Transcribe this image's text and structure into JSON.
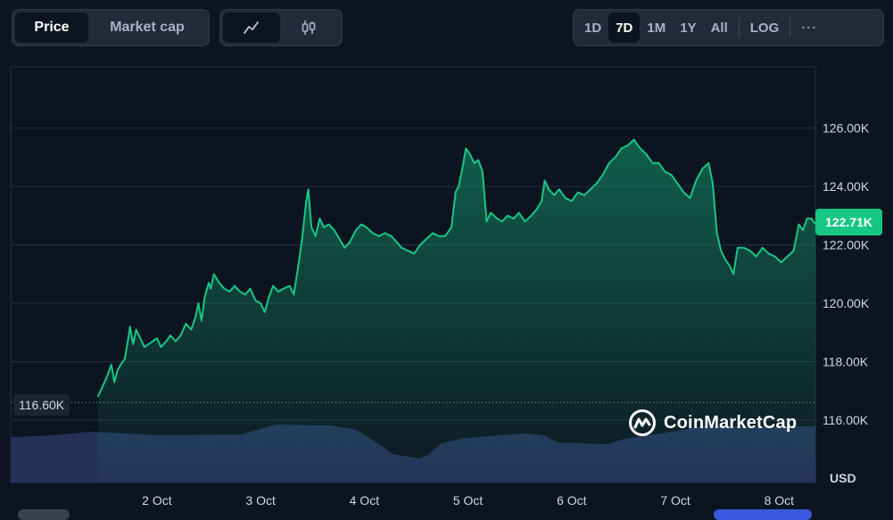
{
  "controls": {
    "metric_tabs": [
      {
        "label": "Price",
        "active": true
      },
      {
        "label": "Market cap",
        "active": false
      }
    ],
    "chart_types": [
      {
        "icon": "line-chart-icon",
        "active": true
      },
      {
        "icon": "candlestick-icon",
        "active": false
      }
    ],
    "ranges": [
      "1D",
      "7D",
      "1M",
      "1Y",
      "All"
    ],
    "active_range": "7D",
    "scale_label": "LOG",
    "more_label": "···"
  },
  "current_price_label": "122.71K",
  "start_price_label": "116.60K",
  "currency_label": "USD",
  "brand": {
    "name": "CoinMarketCap"
  },
  "colors": {
    "line": "#16c784",
    "badge": "#16c784",
    "volume": "#2c3a66",
    "background": "#0d1421"
  },
  "chart_data": {
    "type": "line",
    "title": "",
    "xlabel": "",
    "ylabel": "USD",
    "x_ticks": [
      "2 Oct",
      "3 Oct",
      "4 Oct",
      "5 Oct",
      "6 Oct",
      "7 Oct",
      "8 Oct"
    ],
    "y_ticks": [
      {
        "value": 116000,
        "label": "116.00K"
      },
      {
        "value": 118000,
        "label": "118.00K"
      },
      {
        "value": 120000,
        "label": "120.00K"
      },
      {
        "value": 122000,
        "label": "122.00K"
      },
      {
        "value": 124000,
        "label": "124.00K"
      },
      {
        "value": 126000,
        "label": "126.00K"
      }
    ],
    "ylim": [
      114000,
      128000
    ],
    "xlim": [
      1.43,
      8.35
    ],
    "grid": true,
    "reference_line": {
      "value": 116600,
      "style": "dotted"
    },
    "series": [
      {
        "values": [
          [
            1.43,
            116800
          ],
          [
            1.47,
            117100
          ],
          [
            1.52,
            117500
          ],
          [
            1.56,
            117900
          ],
          [
            1.59,
            117300
          ],
          [
            1.62,
            117700
          ],
          [
            1.65,
            117900
          ],
          [
            1.69,
            118100
          ],
          [
            1.72,
            118700
          ],
          [
            1.74,
            119200
          ],
          [
            1.77,
            118600
          ],
          [
            1.8,
            119100
          ],
          [
            1.84,
            118800
          ],
          [
            1.88,
            118500
          ],
          [
            1.92,
            118600
          ],
          [
            1.96,
            118700
          ],
          [
            2.0,
            118800
          ],
          [
            2.04,
            118500
          ],
          [
            2.09,
            118700
          ],
          [
            2.13,
            118900
          ],
          [
            2.18,
            118700
          ],
          [
            2.23,
            118900
          ],
          [
            2.28,
            119300
          ],
          [
            2.33,
            119100
          ],
          [
            2.37,
            119500
          ],
          [
            2.4,
            120000
          ],
          [
            2.43,
            119400
          ],
          [
            2.46,
            120200
          ],
          [
            2.5,
            120700
          ],
          [
            2.52,
            120500
          ],
          [
            2.55,
            121000
          ],
          [
            2.6,
            120700
          ],
          [
            2.65,
            120500
          ],
          [
            2.7,
            120400
          ],
          [
            2.75,
            120600
          ],
          [
            2.8,
            120400
          ],
          [
            2.85,
            120300
          ],
          [
            2.9,
            120500
          ],
          [
            2.95,
            120100
          ],
          [
            3.0,
            120000
          ],
          [
            3.04,
            119700
          ],
          [
            3.08,
            120200
          ],
          [
            3.12,
            120600
          ],
          [
            3.17,
            120400
          ],
          [
            3.22,
            120500
          ],
          [
            3.28,
            120600
          ],
          [
            3.32,
            120300
          ],
          [
            3.36,
            121200
          ],
          [
            3.4,
            122200
          ],
          [
            3.44,
            123500
          ],
          [
            3.46,
            123900
          ],
          [
            3.49,
            122600
          ],
          [
            3.53,
            122300
          ],
          [
            3.57,
            122900
          ],
          [
            3.61,
            122600
          ],
          [
            3.66,
            122700
          ],
          [
            3.71,
            122500
          ],
          [
            3.76,
            122200
          ],
          [
            3.81,
            121900
          ],
          [
            3.86,
            122100
          ],
          [
            3.92,
            122500
          ],
          [
            3.97,
            122700
          ],
          [
            4.02,
            122600
          ],
          [
            4.08,
            122400
          ],
          [
            4.14,
            122300
          ],
          [
            4.2,
            122400
          ],
          [
            4.26,
            122300
          ],
          [
            4.31,
            122100
          ],
          [
            4.36,
            121900
          ],
          [
            4.42,
            121800
          ],
          [
            4.48,
            121700
          ],
          [
            4.54,
            122000
          ],
          [
            4.6,
            122200
          ],
          [
            4.66,
            122400
          ],
          [
            4.72,
            122300
          ],
          [
            4.78,
            122300
          ],
          [
            4.84,
            122600
          ],
          [
            4.88,
            123800
          ],
          [
            4.91,
            124000
          ],
          [
            4.95,
            124700
          ],
          [
            4.98,
            125300
          ],
          [
            5.02,
            125100
          ],
          [
            5.06,
            124800
          ],
          [
            5.1,
            124900
          ],
          [
            5.14,
            124500
          ],
          [
            5.18,
            122800
          ],
          [
            5.22,
            123100
          ],
          [
            5.28,
            122900
          ],
          [
            5.33,
            122800
          ],
          [
            5.38,
            123000
          ],
          [
            5.44,
            122900
          ],
          [
            5.49,
            123100
          ],
          [
            5.55,
            122800
          ],
          [
            5.61,
            123000
          ],
          [
            5.66,
            123200
          ],
          [
            5.71,
            123500
          ],
          [
            5.74,
            124200
          ],
          [
            5.78,
            123900
          ],
          [
            5.83,
            123700
          ],
          [
            5.88,
            123900
          ],
          [
            5.94,
            123600
          ],
          [
            6.0,
            123500
          ],
          [
            6.06,
            123800
          ],
          [
            6.12,
            123700
          ],
          [
            6.18,
            123900
          ],
          [
            6.24,
            124100
          ],
          [
            6.3,
            124400
          ],
          [
            6.36,
            124800
          ],
          [
            6.42,
            125000
          ],
          [
            6.48,
            125300
          ],
          [
            6.54,
            125400
          ],
          [
            6.6,
            125600
          ],
          [
            6.66,
            125300
          ],
          [
            6.72,
            125100
          ],
          [
            6.78,
            124800
          ],
          [
            6.84,
            124800
          ],
          [
            6.9,
            124500
          ],
          [
            6.96,
            124400
          ],
          [
            7.02,
            124100
          ],
          [
            7.08,
            123800
          ],
          [
            7.14,
            123600
          ],
          [
            7.2,
            124200
          ],
          [
            7.26,
            124600
          ],
          [
            7.32,
            124800
          ],
          [
            7.36,
            124100
          ],
          [
            7.4,
            122400
          ],
          [
            7.44,
            121800
          ],
          [
            7.48,
            121500
          ],
          [
            7.52,
            121300
          ],
          [
            7.56,
            121000
          ],
          [
            7.6,
            121900
          ],
          [
            7.66,
            121900
          ],
          [
            7.72,
            121800
          ],
          [
            7.78,
            121600
          ],
          [
            7.84,
            121900
          ],
          [
            7.9,
            121700
          ],
          [
            7.96,
            121600
          ],
          [
            8.02,
            121400
          ],
          [
            8.08,
            121600
          ],
          [
            8.14,
            121800
          ],
          [
            8.19,
            122700
          ],
          [
            8.23,
            122500
          ],
          [
            8.27,
            122900
          ],
          [
            8.31,
            122900
          ],
          [
            8.35,
            122710
          ]
        ]
      }
    ]
  }
}
